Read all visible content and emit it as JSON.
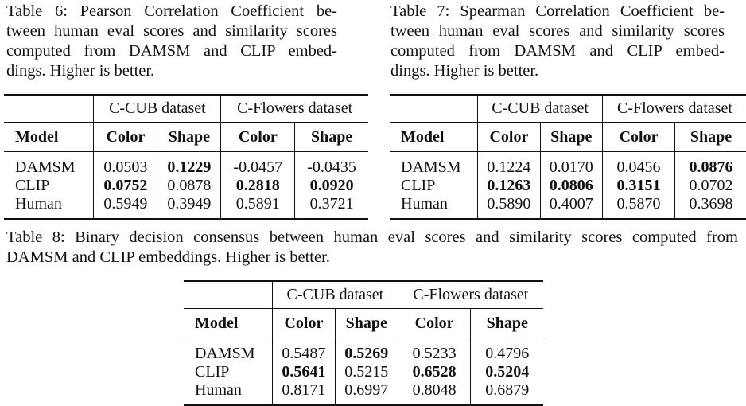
{
  "table6": {
    "caption_lines": [
      "Table 6: Pearson Correlation Coefficient be-",
      "tween human eval scores and similarity scores",
      "computed from DAMSM and CLIP embed-",
      "dings. Higher is better."
    ],
    "group_headers": [
      "C-CUB dataset",
      "C-Flowers dataset"
    ],
    "columns": [
      "Model",
      "Color",
      "Shape",
      "Color",
      "Shape"
    ],
    "rows": [
      {
        "model": "DAMSM",
        "values": [
          "0.0503",
          "0.1229",
          "-0.0457",
          "-0.0435"
        ],
        "bold": [
          false,
          true,
          false,
          false
        ]
      },
      {
        "model": "CLIP",
        "values": [
          "0.0752",
          "0.0878",
          "0.2818",
          "0.0920"
        ],
        "bold": [
          true,
          false,
          true,
          true
        ]
      },
      {
        "model": "Human",
        "values": [
          "0.5949",
          "0.3949",
          "0.5891",
          "0.3721"
        ],
        "bold": [
          false,
          false,
          false,
          false
        ]
      }
    ]
  },
  "table7": {
    "caption_lines": [
      "Table 7: Spearman Correlation Coefficient be-",
      "tween human eval scores and similarity scores",
      "computed from DAMSM and CLIP embed-",
      "dings. Higher is better."
    ],
    "group_headers": [
      "C-CUB dataset",
      "C-Flowers dataset"
    ],
    "columns": [
      "Model",
      "Color",
      "Shape",
      "Color",
      "Shape"
    ],
    "rows": [
      {
        "model": "DAMSM",
        "values": [
          "0.1224",
          "0.0170",
          "0.0456",
          "0.0876"
        ],
        "bold": [
          false,
          false,
          false,
          true
        ]
      },
      {
        "model": "CLIP",
        "values": [
          "0.1263",
          "0.0806",
          "0.3151",
          "0.0702"
        ],
        "bold": [
          true,
          true,
          true,
          false
        ]
      },
      {
        "model": "Human",
        "values": [
          "0.5890",
          "0.4007",
          "0.5870",
          "0.3698"
        ],
        "bold": [
          false,
          false,
          false,
          false
        ]
      }
    ]
  },
  "table8": {
    "caption_lines": [
      "Table 8: Binary decision consensus between human eval scores and similarity scores computed from",
      "DAMSM and CLIP embeddings. Higher is better."
    ],
    "group_headers": [
      "C-CUB dataset",
      "C-Flowers dataset"
    ],
    "columns": [
      "Model",
      "Color",
      "Shape",
      "Color",
      "Shape"
    ],
    "rows": [
      {
        "model": "DAMSM",
        "values": [
          "0.5487",
          "0.5269",
          "0.5233",
          "0.4796"
        ],
        "bold": [
          false,
          true,
          false,
          false
        ]
      },
      {
        "model": "CLIP",
        "values": [
          "0.5641",
          "0.5215",
          "0.6528",
          "0.5204"
        ],
        "bold": [
          true,
          false,
          true,
          true
        ]
      },
      {
        "model": "Human",
        "values": [
          "0.8171",
          "0.6997",
          "0.8048",
          "0.6879"
        ],
        "bold": [
          false,
          false,
          false,
          false
        ]
      }
    ]
  }
}
